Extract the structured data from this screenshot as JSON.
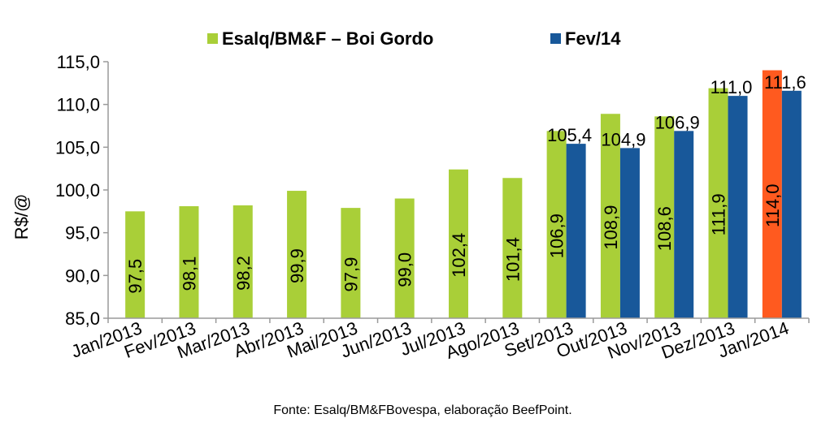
{
  "chart_data": {
    "type": "bar",
    "ylabel": "R$/@",
    "ylim": [
      85,
      115
    ],
    "yticks": [
      "85,0",
      "90,0",
      "95,0",
      "100,0",
      "105,0",
      "110,0",
      "115,0"
    ],
    "categories": [
      "Jan/2013",
      "Fev/2013",
      "Mar/2013",
      "Abr/2013",
      "Mai/2013",
      "Jun/2013",
      "Jul/2013",
      "Ago/2013",
      "Set/2013",
      "Out/2013",
      "Nov/2013",
      "Dez/2013",
      "Jan/2014"
    ],
    "series": [
      {
        "name": "Esalq/BM&F – Boi Gordo",
        "color": "#a9cf38",
        "values": [
          97.5,
          98.1,
          98.2,
          99.9,
          97.9,
          99.0,
          102.4,
          101.4,
          106.9,
          108.9,
          108.6,
          111.9,
          114.0
        ],
        "labels": [
          "97,5",
          "98,1",
          "98,2",
          "99,9",
          "97,9",
          "99,0",
          "102,4",
          "101,4",
          "106,9",
          "108,9",
          "108,6",
          "111,9",
          "114,0"
        ],
        "highlight": {
          "index": 12,
          "color": "#ff5a1f"
        }
      },
      {
        "name": "Fev/14",
        "color": "#18589a",
        "values": [
          null,
          null,
          null,
          null,
          null,
          null,
          null,
          null,
          105.4,
          104.9,
          106.9,
          111.0,
          111.6
        ],
        "labels": [
          "",
          "",
          "",
          "",
          "",
          "",
          "",
          "",
          "105,4",
          "104,9",
          "106,9",
          "111,0",
          "111,6"
        ]
      }
    ],
    "grid": false,
    "legend": "top"
  },
  "source": "Fonte:  Esalq/BM&FBovespa,  elaboração  BeefPoint."
}
